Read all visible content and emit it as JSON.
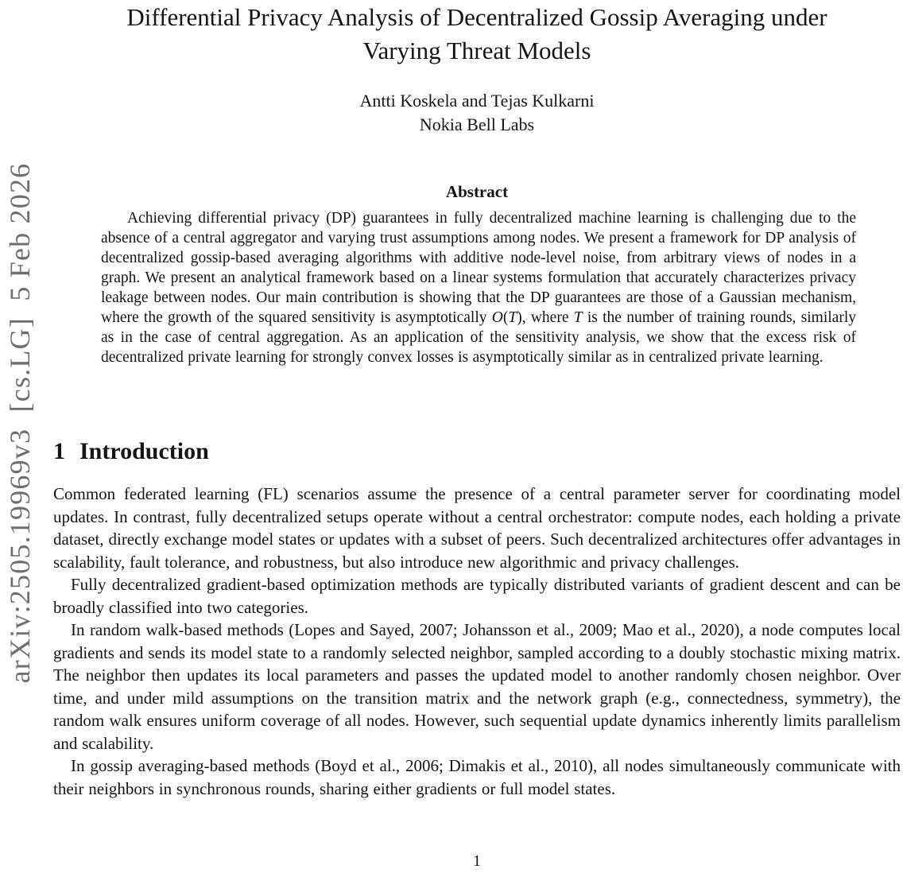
{
  "watermark": {
    "text": "arXiv:2505.19969v3  [cs.LG]  5 Feb 2026",
    "color": "#6f6f6f"
  },
  "title": {
    "line1": "Differential Privacy Analysis of Decentralized Gossip Averaging under",
    "line2": "Varying Threat Models"
  },
  "authors": {
    "names": "Antti Koskela and Tejas Kulkarni",
    "affiliation": "Nokia Bell Labs"
  },
  "abstract": {
    "heading": "Abstract",
    "segments": [
      "Achieving differential privacy (DP) guarantees in fully decentralized machine learning is challenging due to the absence of a central aggregator and varying trust assumptions among nodes. We present a framework for DP analysis of decentralized gossip-based averaging algorithms with additive node-level noise, from arbitrary views of nodes in a graph. We present an analytical framework based on a linear systems formulation that accurately characterizes privacy leakage between nodes. Our main contribution is showing that the DP guarantees are those of a Gaussian mechanism, where the growth of the squared sensitivity is asymptotically ",
      "O",
      "(",
      "T",
      "), where ",
      "T",
      " is the number of training rounds, similarly as in the case of central aggregation. As an application of the sensitivity analysis, we show that the excess risk of decentralized private learning for strongly convex losses is asymptotically similar as in centralized private learning."
    ]
  },
  "introduction": {
    "number": "1",
    "title": "Introduction",
    "paragraphs": [
      "Common federated learning (FL) scenarios assume the presence of a central parameter server for coordinating model updates. In contrast, fully decentralized setups operate without a central orchestrator: compute nodes, each holding a private dataset, directly exchange model states or updates with a subset of peers. Such decentralized architectures offer advantages in scalability, fault tolerance, and robustness, but also introduce new algorithmic and privacy challenges.",
      "Fully decentralized gradient-based optimization methods are typically distributed variants of gradient descent and can be broadly classified into two categories.",
      "In random walk-based methods (Lopes and Sayed, 2007; Johansson et al., 2009; Mao et al., 2020), a node computes local gradients and sends its model state to a randomly selected neighbor, sampled according to a doubly stochastic mixing matrix. The neighbor then updates its local parameters and passes the updated model to another randomly chosen neighbor. Over time, and under mild assumptions on the transition matrix and the network graph (e.g., connectedness, symmetry), the random walk ensures uniform coverage of all nodes. However, such sequential update dynamics inherently limits parallelism and scalability.",
      "In gossip averaging-based methods (Boyd et al., 2006; Dimakis et al., 2010), all nodes simultaneously communicate with their neighbors in synchronous rounds, sharing either gradients or full model states."
    ]
  },
  "footer": {
    "page_number": "1"
  }
}
